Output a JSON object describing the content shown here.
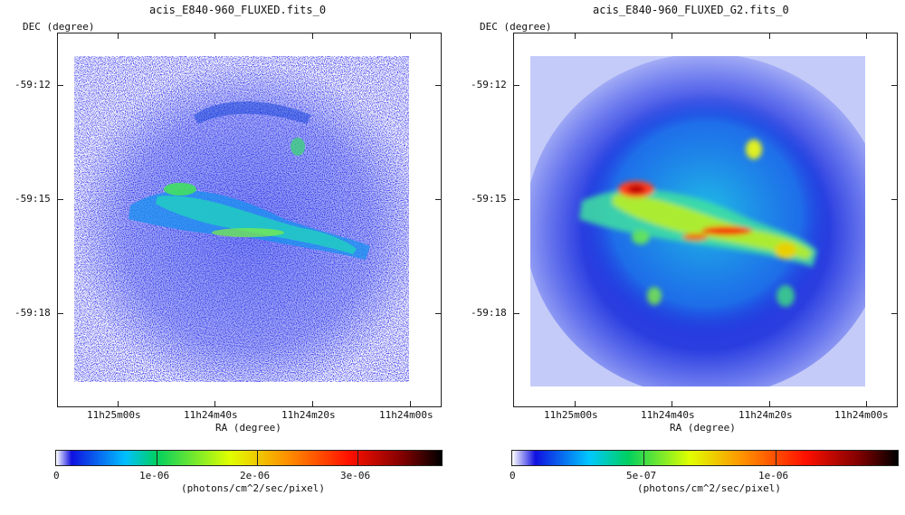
{
  "panels": [
    {
      "id": "left",
      "title": "acis_E840-960_FLUXED.fits_0",
      "ylabel": "DEC (degree)",
      "xlabel": "RA (degree)",
      "yticks": [
        "-59:12",
        "-59:15",
        "-59:18"
      ],
      "xticks": [
        "11h25m00s",
        "11h24m40s",
        "11h24m20s",
        "11h24m00s"
      ],
      "colorbar": {
        "ticks": [
          "0",
          "1e-06",
          "2e-06",
          "3e-06"
        ],
        "unit": "(photons/cm^2/sec/pixel)"
      }
    },
    {
      "id": "right",
      "title": "acis_E840-960_FLUXED_G2.fits_0",
      "ylabel": "DEC (degree)",
      "xlabel": "RA (degree)",
      "yticks": [
        "-59:12",
        "-59:15",
        "-59:18"
      ],
      "xticks": [
        "11h25m00s",
        "11h24m40s",
        "11h24m20s",
        "11h24m00s"
      ],
      "colorbar": {
        "ticks": [
          "0",
          "5e-07",
          "1e-06"
        ],
        "unit": "(photons/cm^2/sec/pixel)"
      }
    }
  ],
  "colors": {
    "colormap": [
      "#ffffff",
      "#1010e0",
      "#00c0ff",
      "#00d060",
      "#e0ff00",
      "#ff8000",
      "#ff0000",
      "#800000",
      "#000000"
    ]
  }
}
